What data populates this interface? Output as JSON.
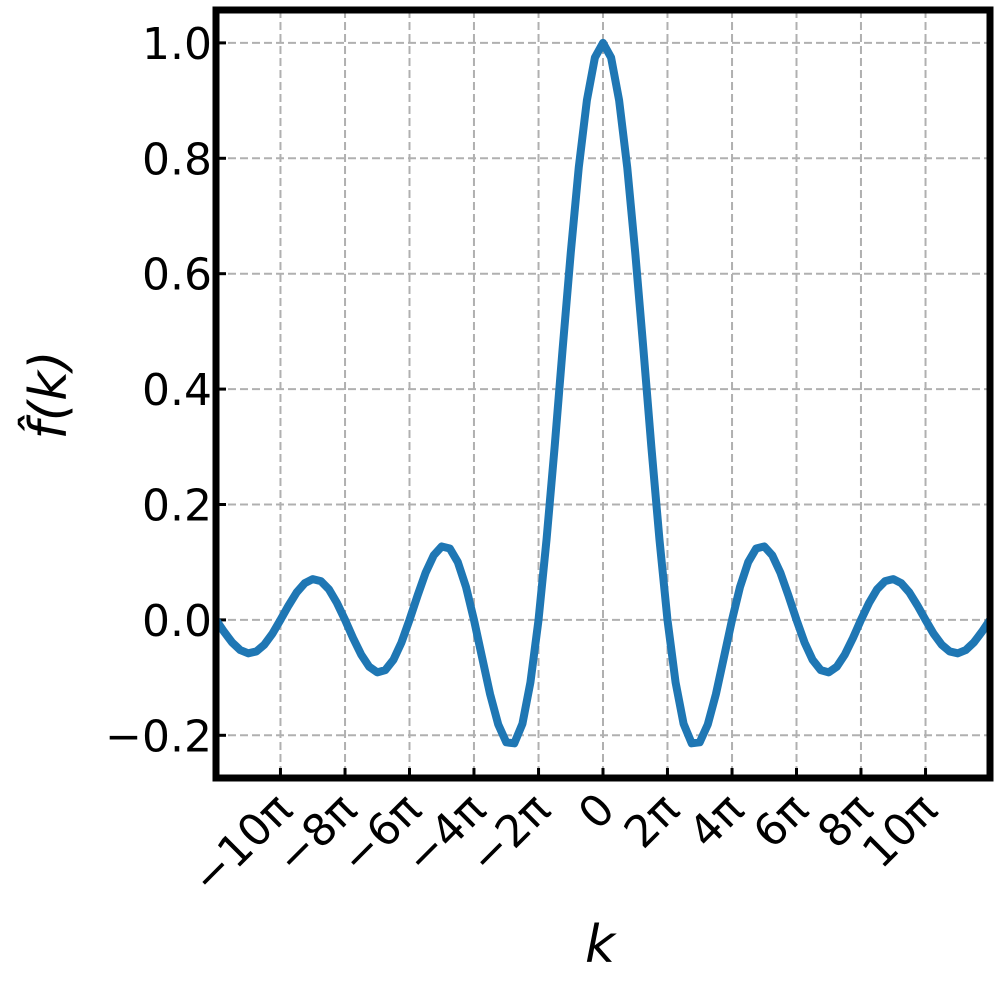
{
  "chart_data": {
    "type": "line",
    "x_label": "k",
    "y_label": "f̂(k)",
    "x": [
      -37.7,
      -36.91,
      -36.13,
      -35.34,
      -34.56,
      -33.77,
      -32.99,
      -32.2,
      -31.42,
      -30.63,
      -29.85,
      -29.06,
      -28.27,
      -27.49,
      -26.7,
      -25.92,
      -25.13,
      -24.35,
      -23.56,
      -22.78,
      -21.99,
      -21.21,
      -20.42,
      -19.63,
      -18.85,
      -18.06,
      -17.28,
      -16.49,
      -15.71,
      -14.92,
      -14.14,
      -13.35,
      -12.57,
      -11.78,
      -11.0,
      -10.21,
      -9.42,
      -8.64,
      -7.85,
      -7.07,
      -6.28,
      -5.5,
      -4.71,
      -3.93,
      -3.14,
      -2.36,
      -1.57,
      -0.79,
      0,
      0.79,
      1.57,
      2.36,
      3.14,
      3.93,
      4.71,
      5.5,
      6.28,
      7.07,
      7.85,
      8.64,
      9.42,
      10.21,
      11.0,
      11.78,
      12.57,
      13.35,
      14.14,
      14.92,
      15.71,
      16.49,
      17.28,
      18.06,
      18.85,
      19.63,
      20.42,
      21.21,
      21.99,
      22.78,
      23.56,
      24.35,
      25.13,
      25.92,
      26.7,
      27.49,
      28.27,
      29.06,
      29.85,
      30.63,
      31.42,
      32.2,
      32.99,
      33.77,
      34.56,
      35.34,
      36.13,
      36.91,
      37.7
    ],
    "series": [
      {
        "color": "#1f77b4",
        "values": [
          0,
          -0.0207,
          -0.0391,
          -0.0523,
          -0.0579,
          -0.0547,
          -0.0429,
          -0.0238,
          0,
          0.025,
          0.0474,
          0.0636,
          0.0707,
          0.0672,
          0.053,
          0.0295,
          0,
          -0.0314,
          -0.06,
          -0.0811,
          -0.0909,
          -0.0871,
          -0.0693,
          -0.039,
          0,
          0.0424,
          0.0818,
          0.112,
          0.1273,
          0.1238,
          0.1,
          0.0573,
          0,
          -0.065,
          -0.1286,
          -0.181,
          -0.2122,
          -0.2139,
          -0.1801,
          -0.1083,
          0,
          0.1392,
          0.3001,
          0.4705,
          0.6366,
          0.7842,
          0.9003,
          0.9745,
          1,
          0.9745,
          0.9003,
          0.7842,
          0.6366,
          0.4705,
          0.3001,
          0.1392,
          0,
          -0.1083,
          -0.1801,
          -0.2139,
          -0.2122,
          -0.181,
          -0.1286,
          -0.065,
          0,
          0.0573,
          0.1,
          0.1238,
          0.1273,
          0.112,
          0.0818,
          0.0424,
          0,
          -0.039,
          -0.0693,
          -0.0871,
          -0.0909,
          -0.0811,
          -0.06,
          -0.0314,
          0,
          0.0295,
          0.053,
          0.0672,
          0.0707,
          0.0636,
          0.0474,
          0.025,
          0,
          -0.0238,
          -0.0429,
          -0.0547,
          -0.0579,
          -0.0523,
          -0.0391,
          -0.0207,
          0
        ]
      }
    ],
    "xlim": [
      -37.7,
      37.7
    ],
    "xticks": [
      {
        "value": -31.42,
        "label": "−10π"
      },
      {
        "value": -25.13,
        "label": "−8π"
      },
      {
        "value": -18.85,
        "label": "−6π"
      },
      {
        "value": -12.57,
        "label": "−4π"
      },
      {
        "value": -6.28,
        "label": "−2π"
      },
      0,
      {
        "value": 6.28,
        "label": "2π"
      },
      {
        "value": 12.57,
        "label": "4π"
      },
      {
        "value": 18.85,
        "label": "6π"
      },
      {
        "value": 25.13,
        "label": "8π"
      },
      {
        "value": 31.42,
        "label": "10π"
      }
    ],
    "ylim": [
      -0.274,
      1.057
    ],
    "yticks": [
      {
        "value": -0.2,
        "label": "−0.2"
      },
      {
        "value": 0,
        "label": "0.0"
      },
      0.2,
      0.4,
      0.6,
      0.8,
      {
        "value": 1,
        "label": "1.0"
      }
    ],
    "grid": true
  }
}
